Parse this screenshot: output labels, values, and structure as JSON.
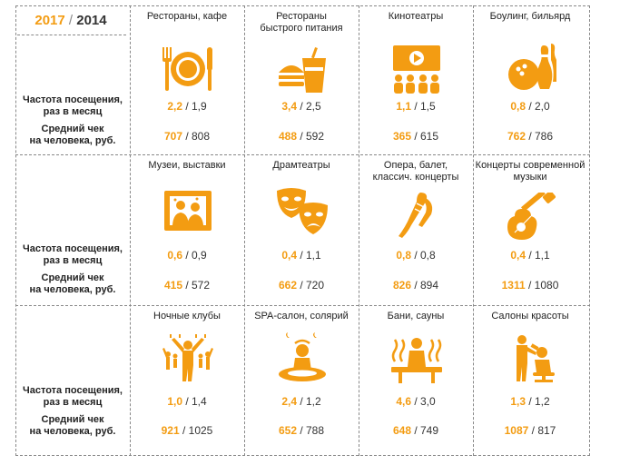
{
  "legend": {
    "year_new": "2017",
    "sep": " / ",
    "year_old": "2014"
  },
  "labels": {
    "freq_1": "Частота посещения,",
    "freq_2": "раз в месяц",
    "check_1": "Средний чек",
    "check_2": "на человека, руб."
  },
  "accent_color": "#F39C12",
  "rows": [
    {
      "cells": [
        {
          "t1": "Рестораны, кафе",
          "t2": "",
          "icon": "restaurant-icon",
          "freq_new": "2,2",
          "freq_old": " / 1,9",
          "check_new": "707",
          "check_old": " / 808"
        },
        {
          "t1": "Рестораны",
          "t2": "быстрого питания",
          "icon": "fast-food-icon",
          "freq_new": "3,4",
          "freq_old": " / 2,5",
          "check_new": "488",
          "check_old": " / 592"
        },
        {
          "t1": "Кинотеатры",
          "t2": "",
          "icon": "cinema-icon",
          "freq_new": "1,1",
          "freq_old": " / 1,5",
          "check_new": "365",
          "check_old": " / 615"
        },
        {
          "t1": "Боулинг, бильярд",
          "t2": "",
          "icon": "bowling-icon",
          "freq_new": "0,8",
          "freq_old": " / 2,0",
          "check_new": "762",
          "check_old": " / 786"
        }
      ]
    },
    {
      "cells": [
        {
          "t1": "Музеи, выставки",
          "t2": "",
          "icon": "museum-icon",
          "freq_new": "0,6",
          "freq_old": " / 0,9",
          "check_new": "415",
          "check_old": " / 572"
        },
        {
          "t1": "Драмтеатры",
          "t2": "",
          "icon": "theatre-masks-icon",
          "freq_new": "0,4",
          "freq_old": " / 1,1",
          "check_new": "662",
          "check_old": " / 720"
        },
        {
          "t1": "Опера, балет,",
          "t2": "классич. концерты",
          "icon": "ballet-icon",
          "freq_new": "0,8",
          "freq_old": " / 0,8",
          "check_new": "826",
          "check_old": " / 894"
        },
        {
          "t1": "Концерты современной",
          "t2": "музыки",
          "icon": "guitar-icon",
          "freq_new": "0,4",
          "freq_old": " / 1,1",
          "check_new": "1311",
          "check_old": " / 1080"
        }
      ]
    },
    {
      "cells": [
        {
          "t1": "Ночные клубы",
          "t2": "",
          "icon": "nightclub-icon",
          "freq_new": "1,0",
          "freq_old": " / 1,4",
          "check_new": "921",
          "check_old": " / 1025"
        },
        {
          "t1": "SPA-салон, солярий",
          "t2": "",
          "icon": "spa-icon",
          "freq_new": "2,4",
          "freq_old": " / 1,2",
          "check_new": "652",
          "check_old": " / 788"
        },
        {
          "t1": "Бани, сауны",
          "t2": "",
          "icon": "sauna-icon",
          "freq_new": "4,6",
          "freq_old": " / 3,0",
          "check_new": "648",
          "check_old": " / 749"
        },
        {
          "t1": "Салоны красоты",
          "t2": "",
          "icon": "beauty-salon-icon",
          "freq_new": "1,3",
          "freq_old": " / 1,2",
          "check_new": "1087",
          "check_old": " / 817"
        }
      ]
    }
  ]
}
